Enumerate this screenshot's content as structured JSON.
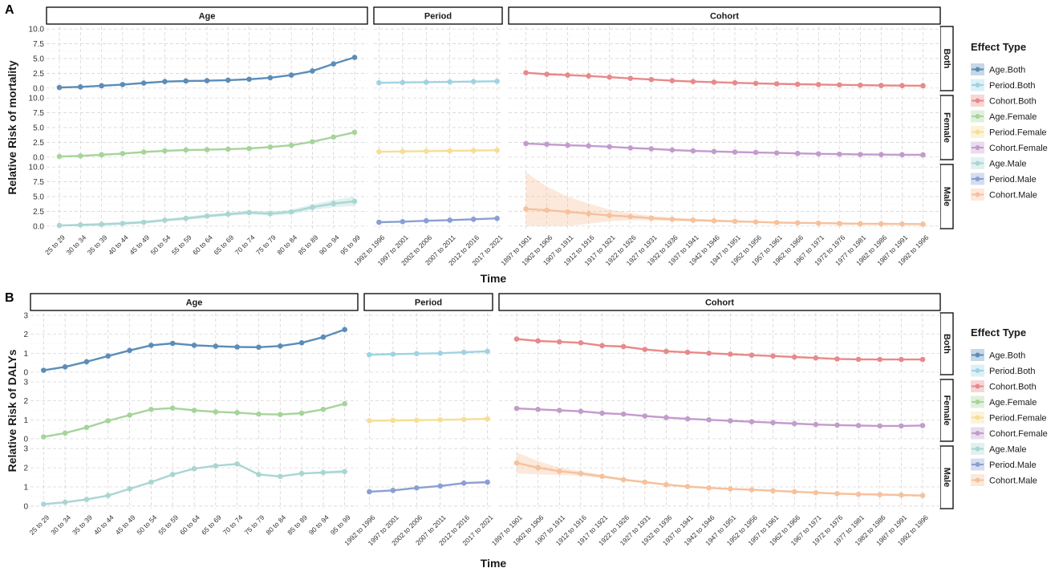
{
  "colors": {
    "Age.Both": "#5b8db8",
    "Period.Both": "#9fd3e2",
    "Cohort.Both": "#e8898a",
    "Age.Female": "#a6d49a",
    "Period.Female": "#f6de94",
    "Cohort.Female": "#c39bcd",
    "Age.Male": "#a9d6d3",
    "Period.Male": "#8a9fd2",
    "Cohort.Male": "#f6c19c"
  },
  "chart_data": [
    {
      "type": "line",
      "tag": "A",
      "title": "",
      "ylabel": "Relative Risk of mortality",
      "xlabel": "Time",
      "ylim": [
        0,
        10
      ],
      "yticks": [
        0.0,
        2.5,
        5.0,
        7.5,
        10.0
      ],
      "ytick_labels": [
        "0.0",
        "2.5",
        "5.0",
        "7.5",
        "10.0"
      ],
      "column_facets": [
        "Age",
        "Period",
        "Cohort"
      ],
      "row_facets": [
        "Both",
        "Female",
        "Male"
      ],
      "categories": {
        "Age": [
          "25 to 29",
          "30 to 34",
          "35 to 39",
          "40 to 44",
          "45 to 49",
          "50 to 54",
          "55 to 59",
          "60 to 64",
          "65 to 69",
          "70 to 74",
          "75 to 79",
          "80 to 84",
          "85 to 89",
          "90 to 94",
          "95 to 99"
        ],
        "Period": [
          "1992 to 1996",
          "1997 to 2001",
          "2002 to 2006",
          "2007 to 2011",
          "2012 to 2016",
          "2017 to 2021"
        ],
        "Cohort": [
          "1897 to 1901",
          "1902 to 1906",
          "1907 to 1911",
          "1912 to 1916",
          "1917 to 1921",
          "1922 to 1926",
          "1927 to 1931",
          "1932 to 1936",
          "1937 to 1941",
          "1942 to 1946",
          "1947 to 1951",
          "1952 to 1956",
          "1957 to 1961",
          "1962 to 1966",
          "1967 to 1971",
          "1972 to 1976",
          "1977 to 1981",
          "1982 to 1986",
          "1987 to 1991",
          "1992 to 1996"
        ]
      },
      "series": [
        {
          "name": "Age.Both",
          "facet": "Age",
          "row": "Both",
          "values": [
            0.1,
            0.2,
            0.4,
            0.6,
            0.85,
            1.1,
            1.2,
            1.25,
            1.35,
            1.5,
            1.75,
            2.2,
            2.9,
            4.1,
            5.2
          ]
        },
        {
          "name": "Period.Both",
          "facet": "Period",
          "row": "Both",
          "values": [
            0.9,
            0.95,
            1.0,
            1.05,
            1.1,
            1.15
          ]
        },
        {
          "name": "Cohort.Both",
          "facet": "Cohort",
          "row": "Both",
          "values": [
            2.6,
            2.35,
            2.2,
            2.05,
            1.85,
            1.65,
            1.45,
            1.25,
            1.1,
            1.0,
            0.9,
            0.8,
            0.72,
            0.65,
            0.6,
            0.55,
            0.5,
            0.45,
            0.42,
            0.4
          ]
        },
        {
          "name": "Age.Female",
          "facet": "Age",
          "row": "Female",
          "values": [
            0.1,
            0.2,
            0.4,
            0.6,
            0.85,
            1.05,
            1.2,
            1.25,
            1.35,
            1.45,
            1.7,
            2.0,
            2.6,
            3.4,
            4.2
          ]
        },
        {
          "name": "Period.Female",
          "facet": "Period",
          "row": "Female",
          "values": [
            0.9,
            0.95,
            1.0,
            1.05,
            1.1,
            1.15
          ]
        },
        {
          "name": "Cohort.Female",
          "facet": "Cohort",
          "row": "Female",
          "values": [
            2.3,
            2.15,
            2.0,
            1.9,
            1.75,
            1.55,
            1.4,
            1.2,
            1.05,
            0.95,
            0.85,
            0.78,
            0.7,
            0.62,
            0.55,
            0.5,
            0.45,
            0.42,
            0.4,
            0.38
          ]
        },
        {
          "name": "Age.Male",
          "facet": "Age",
          "row": "Male",
          "values": [
            0.1,
            0.2,
            0.3,
            0.45,
            0.65,
            1.0,
            1.3,
            1.7,
            2.0,
            2.3,
            2.1,
            2.4,
            3.2,
            3.8,
            4.2
          ],
          "band": [
            0.15,
            0.2,
            0.25,
            0.25,
            0.25,
            0.25,
            0.3,
            0.3,
            0.3,
            0.35,
            0.35,
            0.4,
            0.5,
            0.6,
            0.8
          ]
        },
        {
          "name": "Period.Male",
          "facet": "Period",
          "row": "Male",
          "values": [
            0.65,
            0.75,
            0.9,
            1.0,
            1.15,
            1.3
          ]
        },
        {
          "name": "Cohort.Male",
          "facet": "Cohort",
          "row": "Male",
          "values": [
            2.9,
            2.7,
            2.4,
            2.1,
            1.8,
            1.6,
            1.35,
            1.15,
            1.0,
            0.9,
            0.8,
            0.7,
            0.6,
            0.55,
            0.5,
            0.45,
            0.4,
            0.38,
            0.35,
            0.32
          ],
          "band": [
            6.2,
            4.0,
            2.6,
            1.7,
            1.0,
            0.6,
            0.4,
            0.3,
            0.25,
            0.2,
            0.2,
            0.15,
            0.15,
            0.15,
            0.15,
            0.15,
            0.15,
            0.15,
            0.15,
            0.15
          ]
        }
      ]
    },
    {
      "type": "line",
      "tag": "B",
      "title": "",
      "ylabel": "Relative Risk of DALYs",
      "xlabel": "Time",
      "ylim": [
        0,
        3
      ],
      "yticks": [
        0,
        1,
        2,
        3
      ],
      "ytick_labels": [
        "0",
        "1",
        "2",
        "3"
      ],
      "column_facets": [
        "Age",
        "Period",
        "Cohort"
      ],
      "row_facets": [
        "Both",
        "Female",
        "Male"
      ],
      "categories": {
        "Age": [
          "25 to 29",
          "30 to 34",
          "35 to 39",
          "40 to 44",
          "45 to 49",
          "50 to 54",
          "55 to 59",
          "60 to 64",
          "65 to 69",
          "70 to 74",
          "75 to 79",
          "80 to 84",
          "85 to 89",
          "90 to 94",
          "95 to 99"
        ],
        "Period": [
          "1992 to 1996",
          "1997 to 2001",
          "2002 to 2006",
          "2007 to 2011",
          "2012 to 2016",
          "2017 to 2021"
        ],
        "Cohort": [
          "1897 to 1901",
          "1902 to 1906",
          "1907 to 1911",
          "1912 to 1916",
          "1917 to 1921",
          "1922 to 1926",
          "1927 to 1931",
          "1932 to 1936",
          "1937 to 1941",
          "1942 to 1946",
          "1947 to 1951",
          "1952 to 1956",
          "1957 to 1961",
          "1962 to 1966",
          "1967 to 1971",
          "1972 to 1976",
          "1977 to 1981",
          "1982 to 1986",
          "1987 to 1991",
          "1992 to 1996"
        ]
      },
      "series": [
        {
          "name": "Age.Both",
          "facet": "Age",
          "row": "Both",
          "values": [
            0.1,
            0.28,
            0.55,
            0.85,
            1.15,
            1.42,
            1.52,
            1.42,
            1.37,
            1.33,
            1.32,
            1.38,
            1.55,
            1.85,
            2.25
          ]
        },
        {
          "name": "Period.Both",
          "facet": "Period",
          "row": "Both",
          "values": [
            0.92,
            0.95,
            0.98,
            1.0,
            1.05,
            1.1
          ]
        },
        {
          "name": "Cohort.Both",
          "facet": "Cohort",
          "row": "Both",
          "values": [
            1.75,
            1.65,
            1.6,
            1.55,
            1.4,
            1.35,
            1.2,
            1.1,
            1.05,
            1.0,
            0.95,
            0.9,
            0.85,
            0.8,
            0.75,
            0.7,
            0.68,
            0.67,
            0.67,
            0.67
          ]
        },
        {
          "name": "Age.Female",
          "facet": "Age",
          "row": "Female",
          "values": [
            0.1,
            0.3,
            0.6,
            0.95,
            1.25,
            1.55,
            1.62,
            1.5,
            1.42,
            1.38,
            1.3,
            1.28,
            1.35,
            1.55,
            1.85
          ]
        },
        {
          "name": "Period.Female",
          "facet": "Period",
          "row": "Female",
          "values": [
            0.95,
            0.97,
            0.98,
            1.0,
            1.02,
            1.05
          ]
        },
        {
          "name": "Cohort.Female",
          "facet": "Cohort",
          "row": "Female",
          "values": [
            1.6,
            1.55,
            1.5,
            1.45,
            1.35,
            1.3,
            1.2,
            1.12,
            1.05,
            1.0,
            0.95,
            0.9,
            0.85,
            0.8,
            0.75,
            0.72,
            0.7,
            0.68,
            0.68,
            0.7
          ]
        },
        {
          "name": "Age.Male",
          "facet": "Age",
          "row": "Male",
          "values": [
            0.1,
            0.2,
            0.35,
            0.55,
            0.9,
            1.25,
            1.65,
            1.95,
            2.1,
            2.2,
            1.65,
            1.55,
            1.7,
            1.75,
            1.8
          ],
          "band": [
            0.05,
            0.05,
            0.05,
            0.05,
            0.05,
            0.05,
            0.05,
            0.05,
            0.05,
            0.05,
            0.05,
            0.05,
            0.05,
            0.05,
            0.1
          ]
        },
        {
          "name": "Period.Male",
          "facet": "Period",
          "row": "Male",
          "values": [
            0.75,
            0.82,
            0.95,
            1.05,
            1.2,
            1.25
          ]
        },
        {
          "name": "Cohort.Male",
          "facet": "Cohort",
          "row": "Male",
          "values": [
            2.25,
            2.0,
            1.82,
            1.7,
            1.55,
            1.38,
            1.25,
            1.12,
            1.02,
            0.95,
            0.9,
            0.85,
            0.8,
            0.75,
            0.7,
            0.65,
            0.62,
            0.6,
            0.58,
            0.55
          ],
          "band": [
            0.55,
            0.35,
            0.2,
            0.12,
            0.08,
            0.06,
            0.05,
            0.05,
            0.05,
            0.05,
            0.05,
            0.05,
            0.05,
            0.05,
            0.05,
            0.05,
            0.05,
            0.05,
            0.05,
            0.05
          ]
        }
      ]
    }
  ],
  "legend": {
    "title": "Effect Type",
    "entries": [
      "Age.Both",
      "Period.Both",
      "Cohort.Both",
      "Age.Female",
      "Period.Female",
      "Cohort.Female",
      "Age.Male",
      "Period.Male",
      "Cohort.Male"
    ]
  }
}
